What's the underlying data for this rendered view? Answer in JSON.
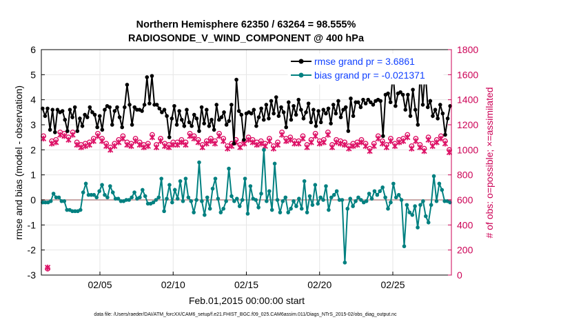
{
  "chart_data": {
    "type": "line",
    "title": "Northern Hemisphere 62350 / 63264 = 98.555%",
    "subtitle": "RADIOSONDE_V_WIND_COMPONENT @ 400 hPa",
    "xlabel": "Feb.01,2015 00:00:00 start",
    "ylabel": "rmse and bias (model - observation)",
    "ylabel_right": "# of obs: o=possible; ×=assimilated",
    "footer": "data file: /Users/raeder/DAI/ATM_forcXX/CAM6_setup/f.e21.FHIST_BGC.f09_025.CAM6assim.011/Diags_NTrS_2015-02/obs_diag_output.nc",
    "x_tick_labels": [
      "02/05",
      "02/10",
      "02/15",
      "02/20",
      "02/25"
    ],
    "x_tick_days": [
      5,
      10,
      15,
      20,
      25
    ],
    "xlim_days": [
      1,
      29
    ],
    "ylim": [
      -3,
      6
    ],
    "y_ticks": [
      -3,
      -2,
      -1,
      0,
      1,
      2,
      3,
      4,
      5,
      6
    ],
    "ylim_right": [
      0,
      1800
    ],
    "y_ticks_right": [
      0,
      200,
      400,
      600,
      800,
      1000,
      1200,
      1400,
      1600,
      1800
    ],
    "grid": true,
    "legend_position": "top-right",
    "colors": {
      "rmse": "#000000",
      "bias": "#008080",
      "obs": "#dd1166",
      "zero_line": "#c8a8a8"
    },
    "series": [
      {
        "name": "rmse grand pr = 3.6861",
        "axis": "left",
        "values": [
          3.65,
          3.35,
          3.65,
          2.8,
          3.6,
          2.7,
          3.6,
          3.5,
          3.55,
          3.2,
          2.75,
          3.6,
          3.3,
          3.7,
          2.75,
          3.25,
          2.95,
          3.4,
          3.3,
          3.7,
          3.5,
          3.4,
          2.9,
          3.35,
          2.8,
          3.6,
          3.75,
          3.7,
          3.0,
          3.55,
          3.7,
          3.3,
          2.9,
          3.7,
          4.6,
          3.8,
          3.0,
          3.7,
          3.6,
          3.6,
          3.55,
          3.8,
          4.9,
          3.85,
          4.95,
          3.8,
          3.8,
          3.65,
          3.5,
          3.6,
          3.35,
          2.5,
          3.25,
          3.75,
          3.0,
          3.55,
          3.2,
          2.95,
          3.6,
          3.1,
          2.95,
          3.4,
          3.25,
          2.75,
          3.7,
          3.05,
          3.6,
          2.95,
          3.2,
          2.8,
          3.8,
          3.2,
          3.3,
          3.5,
          3.0,
          3.15,
          3.8,
          2.25,
          4.8,
          3.55,
          3.4,
          2.4,
          3.45,
          3.5,
          3.45,
          3.6,
          2.95,
          3.3,
          3.65,
          3.2,
          3.8,
          3.25,
          3.95,
          3.45,
          4.1,
          3.35,
          3.7,
          3.5,
          2.9,
          3.9,
          3.2,
          3.75,
          3.4,
          4.0,
          3.6,
          3.25,
          3.5,
          3.85,
          3.1,
          3.6,
          2.95,
          3.55,
          3.1,
          3.6,
          3.45,
          3.65,
          3.05,
          3.8,
          3.45,
          3.95,
          3.3,
          3.6,
          3.7,
          2.75,
          4.05,
          3.35,
          3.9,
          3.9,
          3.7,
          4.0,
          3.85,
          4.0,
          3.9,
          3.8,
          3.95,
          4.0,
          3.95,
          2.55,
          4.2,
          4.25,
          3.9,
          5.1,
          3.75,
          4.25,
          4.3,
          4.2,
          3.6,
          4.2,
          3.35,
          4.4,
          3.6,
          3.0,
          5.2,
          3.8,
          5.2,
          3.7,
          3.95,
          3.35,
          3.6,
          3.25,
          3.8,
          3.45,
          2.6,
          3.25,
          3.75
        ]
      },
      {
        "name": "bias grand pr = -0.021371",
        "axis": "left",
        "values": [
          -0.1,
          -0.1,
          -0.1,
          -0.05,
          0.25,
          0.1,
          0.1,
          -0.05,
          -0.05,
          -0.4,
          -0.4,
          -0.45,
          -0.45,
          -0.45,
          -0.4,
          0.3,
          0.65,
          0.2,
          0.2,
          0.2,
          0.1,
          0.35,
          0.6,
          0.2,
          0.1,
          0.55,
          0.3,
          0.05,
          0.05,
          -0.05,
          -0.05,
          0.0,
          0.0,
          0.1,
          0.3,
          0.05,
          0.1,
          0.4,
          0.15,
          -0.15,
          -0.15,
          -0.1,
          0.0,
          0.1,
          0.85,
          -0.45,
          0.05,
          0.6,
          -0.1,
          0.4,
          0.05,
          0.75,
          -0.05,
          0.85,
          0.1,
          -0.05,
          -0.5,
          0.0,
          1.5,
          -0.05,
          -0.6,
          0.1,
          -0.35,
          0.45,
          0.85,
          0.05,
          -0.5,
          -0.35,
          -0.05,
          1.25,
          0.15,
          -0.05,
          0.05,
          -0.25,
          0.0,
          0.85,
          -0.55,
          0.55,
          0.05,
          0.0,
          -0.3,
          0.25,
          2.0,
          -0.05,
          0.35,
          -0.4,
          1.45,
          0.0,
          -0.5,
          -0.05,
          0.1,
          -0.5,
          -0.35,
          -0.05,
          -0.25,
          0.05,
          -0.35,
          0.75,
          -0.5,
          0.15,
          -0.2,
          0.6,
          -0.15,
          0.1,
          0.0,
          0.55,
          -0.4,
          0.1,
          0.2,
          0.35,
          0.0,
          0.0,
          -2.5,
          -0.35,
          0.05,
          -0.25,
          -0.05,
          0.1,
          0.0,
          -0.1,
          -0.05,
          0.25,
          0.05,
          0.35,
          0.2,
          0.35,
          0.5,
          0.1,
          -0.35,
          -0.1,
          0.65,
          0.1,
          0.2,
          0.0,
          -1.85,
          -0.2,
          -0.5,
          -0.6,
          -0.25,
          -1.1,
          -0.2,
          -0.05,
          -0.65,
          -0.9,
          -0.2,
          0.95,
          -0.05,
          0.65,
          0.4,
          -0.05,
          -0.05,
          -0.1
        ]
      },
      {
        "name": "possible obs",
        "axis": "right",
        "marker": "o",
        "values": [
          1110,
          50,
          1070,
          1080,
          1140,
          1130,
          1100,
          1140,
          1060,
          1040,
          1050,
          1060,
          1090,
          1130,
          1090,
          1050,
          1020,
          1050,
          1080,
          1110,
          1060,
          1050,
          1090,
          1060,
          1040,
          1050,
          1120,
          1040,
          1090,
          1050,
          1040,
          1060,
          1060,
          1080,
          1060,
          1130,
          1110,
          1080,
          1040,
          1070,
          1090,
          1070,
          1130,
          1090,
          1030,
          1050,
          1080,
          1040,
          1070,
          1100,
          1080,
          1060,
          1070,
          1050,
          1090,
          1030,
          1060,
          1140,
          1090,
          1100,
          1070,
          1070,
          1110,
          1040,
          1080,
          1130,
          1070,
          1080,
          1140,
          1040,
          1080,
          1070,
          1060,
          1030,
          1050,
          1060,
          1080,
          1050,
          1010,
          1050,
          1110,
          1070,
          1040,
          1090,
          1050,
          1080,
          1090,
          1120,
          1030,
          1090,
          1040,
          1010,
          1100,
          1050,
          1080,
          1110,
          1070,
          1000
        ]
      },
      {
        "name": "assimilated obs",
        "axis": "right",
        "marker": "x",
        "values": [
          1090,
          60,
          1050,
          1060,
          1120,
          1110,
          1080,
          1120,
          1040,
          1020,
          1030,
          1040,
          1070,
          1110,
          1070,
          1030,
          1000,
          1030,
          1060,
          1090,
          1040,
          1030,
          1070,
          1040,
          1020,
          1030,
          1100,
          1020,
          1070,
          1030,
          1020,
          1040,
          1040,
          1060,
          1040,
          1110,
          1090,
          1060,
          1020,
          1050,
          1070,
          1050,
          1110,
          1070,
          1010,
          1030,
          1060,
          1020,
          1050,
          1080,
          1060,
          1040,
          1050,
          1030,
          1070,
          1010,
          1040,
          1120,
          1070,
          1080,
          1050,
          1050,
          1090,
          1020,
          1060,
          1110,
          1050,
          1060,
          1120,
          1020,
          1060,
          1050,
          1040,
          1010,
          1030,
          1040,
          1060,
          1030,
          990,
          1030,
          1090,
          1050,
          1020,
          1070,
          1030,
          1060,
          1070,
          1100,
          1010,
          1070,
          1020,
          990,
          1080,
          1030,
          1060,
          1090,
          1050,
          980
        ]
      }
    ]
  }
}
